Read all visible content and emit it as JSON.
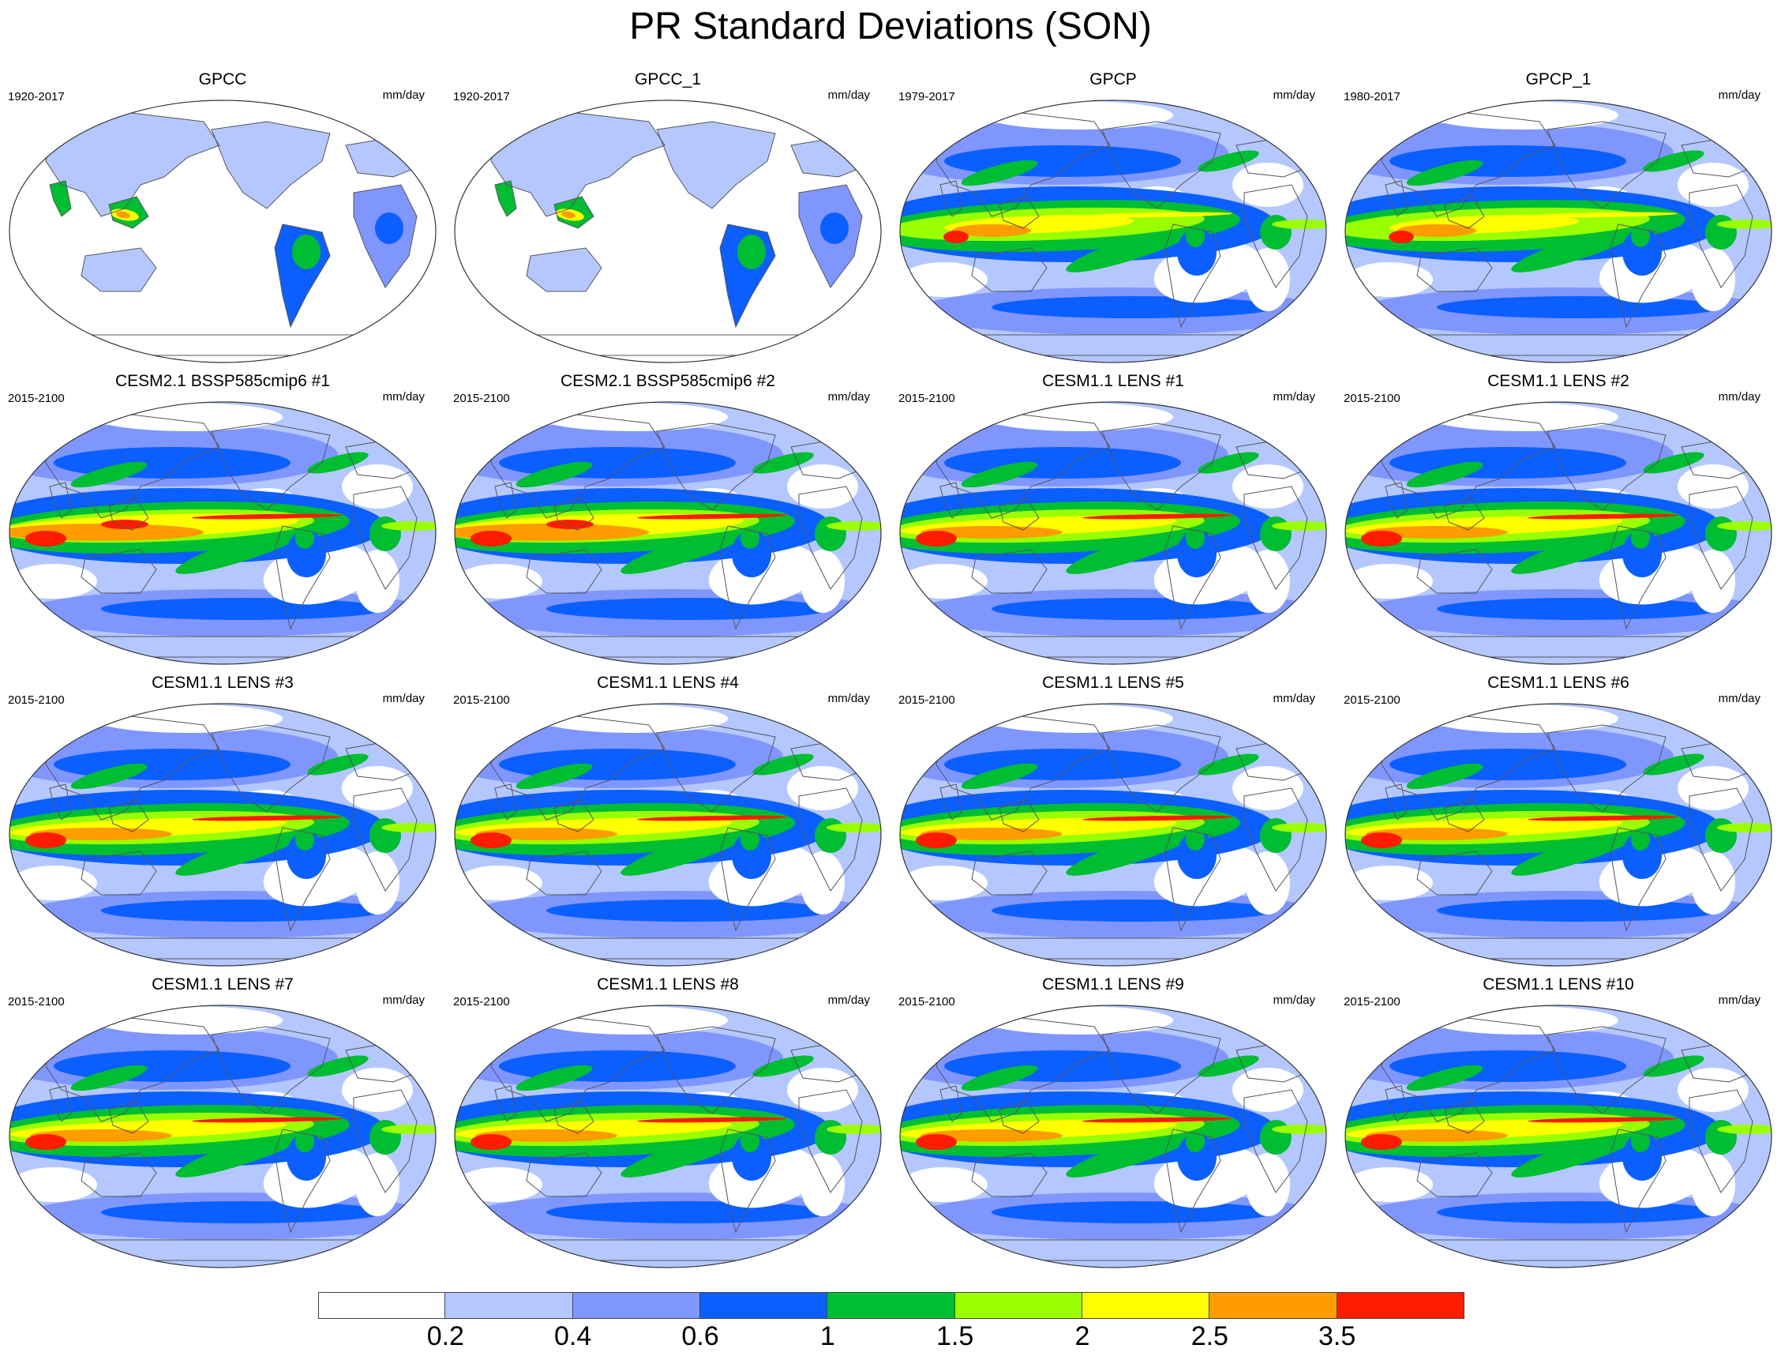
{
  "title": "PR Standard Deviations (SON)",
  "units": "mm/day",
  "colors": {
    "levels": [
      "#ffffff",
      "#b4c8ff",
      "#7f96ff",
      "#0b5eff",
      "#00be32",
      "#9aff00",
      "#ffff00",
      "#ff9c00",
      "#ff1c00"
    ],
    "land_outline": "#555555",
    "map_border": "#333333"
  },
  "colorbar": {
    "labels": [
      "0.2",
      "0.4",
      "0.6",
      "1",
      "1.5",
      "2",
      "2.5",
      "3.5"
    ]
  },
  "panels": [
    {
      "title": "GPCC",
      "period": "1920-2017",
      "units": "mm/day",
      "style": "land"
    },
    {
      "title": "GPCC_1",
      "period": "1920-2017",
      "units": "mm/day",
      "style": "land"
    },
    {
      "title": "GPCP",
      "period": "1979-2017",
      "units": "mm/day",
      "style": "obs"
    },
    {
      "title": "GPCP_1",
      "period": "1980-2017",
      "units": "mm/day",
      "style": "obs"
    },
    {
      "title": "CESM2.1 BSSP585cmip6 #1",
      "period": "2015-2100",
      "units": "mm/day",
      "style": "cesm2"
    },
    {
      "title": "CESM2.1 BSSP585cmip6 #2",
      "period": "2015-2100",
      "units": "mm/day",
      "style": "cesm2"
    },
    {
      "title": "CESM1.1 LENS #1",
      "period": "2015-2100",
      "units": "mm/day",
      "style": "lens"
    },
    {
      "title": "CESM1.1 LENS #2",
      "period": "2015-2100",
      "units": "mm/day",
      "style": "lens"
    },
    {
      "title": "CESM1.1 LENS #3",
      "period": "2015-2100",
      "units": "mm/day",
      "style": "lens"
    },
    {
      "title": "CESM1.1 LENS #4",
      "period": "2015-2100",
      "units": "mm/day",
      "style": "lens"
    },
    {
      "title": "CESM1.1 LENS #5",
      "period": "2015-2100",
      "units": "mm/day",
      "style": "lens"
    },
    {
      "title": "CESM1.1 LENS #6",
      "period": "2015-2100",
      "units": "mm/day",
      "style": "lens"
    },
    {
      "title": "CESM1.1 LENS #7",
      "period": "2015-2100",
      "units": "mm/day",
      "style": "lens"
    },
    {
      "title": "CESM1.1 LENS #8",
      "period": "2015-2100",
      "units": "mm/day",
      "style": "lens"
    },
    {
      "title": "CESM1.1 LENS #9",
      "period": "2015-2100",
      "units": "mm/day",
      "style": "lens"
    },
    {
      "title": "CESM1.1 LENS #10",
      "period": "2015-2100",
      "units": "mm/day",
      "style": "lens"
    }
  ]
}
